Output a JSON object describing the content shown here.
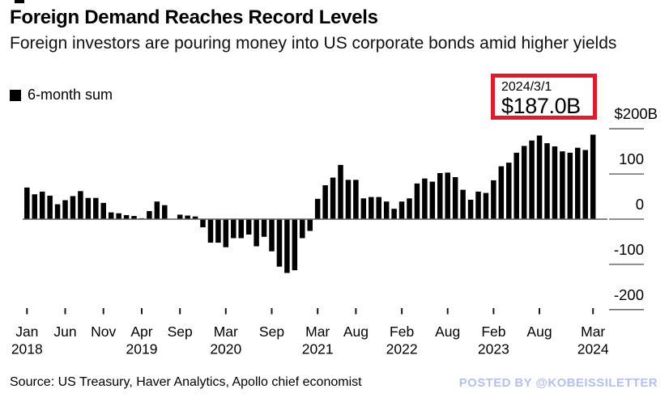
{
  "header": {
    "title": "Foreign Demand Reaches Record Levels",
    "subtitle": "Foreign investors are pouring money into US corporate bonds amid higher yields"
  },
  "legend": {
    "label": "6-month sum",
    "swatch_color": "#000000"
  },
  "annotation": {
    "date": "2024/3/1",
    "value": "$187.0B",
    "border_color": "#e11b2b"
  },
  "footer": {
    "source": "Source: US Treasury, Haver Analytics, Apollo chief economist",
    "watermark": "POSTED BY @KOBEISSILETTER",
    "watermark_color": "#b4c1ef"
  },
  "chart_data": {
    "type": "bar",
    "title": "Foreign Demand Reaches Record Levels",
    "series_name": "6-month sum",
    "unit": "USD billions",
    "bar_color": "#000000",
    "grid": false,
    "legend_position": "top-left",
    "y_axis_side": "right",
    "ylim": [
      -200,
      200
    ],
    "y_ticks": [
      {
        "label": "$200B",
        "value": 200
      },
      {
        "label": "100",
        "value": 100
      },
      {
        "label": "0",
        "value": 0
      },
      {
        "label": "-100",
        "value": -100
      },
      {
        "label": "-200",
        "value": -200
      }
    ],
    "x_ticks": [
      {
        "month": "Jan",
        "year": "2018",
        "index": 0
      },
      {
        "month": "Jun",
        "year": "",
        "index": 5
      },
      {
        "month": "Nov",
        "year": "",
        "index": 10
      },
      {
        "month": "Apr",
        "year": "2019",
        "index": 15
      },
      {
        "month": "Sep",
        "year": "",
        "index": 20
      },
      {
        "month": "Mar",
        "year": "2020",
        "index": 26
      },
      {
        "month": "Sep",
        "year": "",
        "index": 32
      },
      {
        "month": "Mar",
        "year": "2021",
        "index": 38
      },
      {
        "month": "Aug",
        "year": "",
        "index": 43
      },
      {
        "month": "Feb",
        "year": "2022",
        "index": 49
      },
      {
        "month": "Aug",
        "year": "",
        "index": 55
      },
      {
        "month": "Feb",
        "year": "2023",
        "index": 61
      },
      {
        "month": "Aug",
        "year": "",
        "index": 67
      },
      {
        "month": "Mar",
        "year": "2024",
        "index": 74
      }
    ],
    "categories": [
      "2018-01",
      "2018-02",
      "2018-03",
      "2018-04",
      "2018-05",
      "2018-06",
      "2018-07",
      "2018-08",
      "2018-09",
      "2018-10",
      "2018-11",
      "2018-12",
      "2019-01",
      "2019-02",
      "2019-03",
      "2019-04",
      "2019-05",
      "2019-06",
      "2019-07",
      "2019-08",
      "2019-09",
      "2019-10",
      "2019-11",
      "2019-12",
      "2020-01",
      "2020-02",
      "2020-03",
      "2020-04",
      "2020-05",
      "2020-06",
      "2020-07",
      "2020-08",
      "2020-09",
      "2020-10",
      "2020-11",
      "2020-12",
      "2021-01",
      "2021-02",
      "2021-03",
      "2021-04",
      "2021-05",
      "2021-06",
      "2021-07",
      "2021-08",
      "2021-09",
      "2021-10",
      "2021-11",
      "2021-12",
      "2022-01",
      "2022-02",
      "2022-03",
      "2022-04",
      "2022-05",
      "2022-06",
      "2022-07",
      "2022-08",
      "2022-09",
      "2022-10",
      "2022-11",
      "2022-12",
      "2023-01",
      "2023-02",
      "2023-03",
      "2023-04",
      "2023-05",
      "2023-06",
      "2023-07",
      "2023-08",
      "2023-09",
      "2023-10",
      "2023-11",
      "2023-12",
      "2024-01",
      "2024-02",
      "2024-03"
    ],
    "values": [
      70,
      55,
      61,
      52,
      33,
      42,
      51,
      62,
      47,
      47,
      36,
      15,
      13,
      9,
      7,
      2,
      18,
      39,
      31,
      1,
      10,
      8,
      6,
      -18,
      -52,
      -52,
      -62,
      -42,
      -42,
      -34,
      -60,
      -39,
      -71,
      -105,
      -119,
      -113,
      -42,
      -26,
      45,
      75,
      92,
      120,
      87,
      87,
      46,
      49,
      49,
      39,
      23,
      39,
      46,
      79,
      90,
      83,
      102,
      103,
      93,
      65,
      43,
      61,
      58,
      86,
      117,
      125,
      147,
      162,
      174,
      185,
      168,
      161,
      150,
      147,
      158,
      153,
      187
    ],
    "record_point": {
      "category": "2024-03",
      "value": 187.0
    }
  }
}
